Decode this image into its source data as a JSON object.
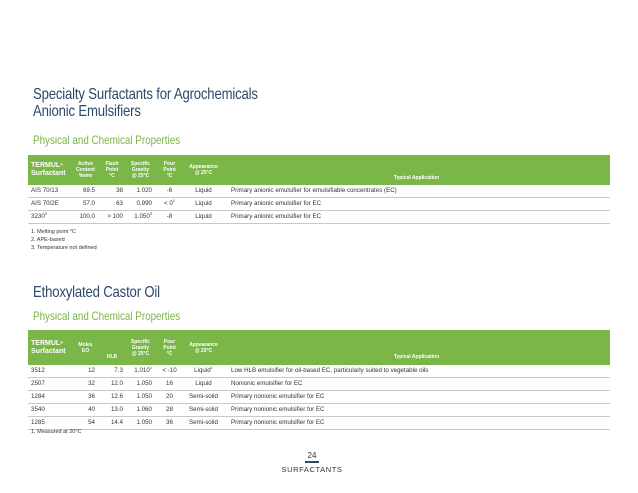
{
  "section1": {
    "title_line1": "Specialty Surfactants for Agrochemicals",
    "title_line2": "Anionic Emulsifiers",
    "subtitle": "Physical and Chemical Properties",
    "headers": {
      "product": "TERMUL",
      "product_mark": "®",
      "product_line2": "Surfactant",
      "active_1": "Active",
      "active_2": "Content",
      "active_3": "%w/w",
      "flash_1": "Flash",
      "flash_2": "Point",
      "flash_3": "°C",
      "sg_1": "Specific",
      "sg_2": "Gravity",
      "sg_3": "@ 25°C",
      "pour_1": "Pour",
      "pour_2": "Point",
      "pour_3": "°C",
      "app_1": "Appearance",
      "app_2": "@ 25°C",
      "typical": "Typical Application"
    },
    "rows": [
      {
        "product": "AIS 70/13",
        "product_sup": "",
        "active": "69.5",
        "flash": "38",
        "sg": "1.020",
        "sg_sup": "",
        "pour": "-6",
        "pour_sup": "",
        "appearance": "Liquid",
        "application": "Primary anionic emulsifier for emulsifiable concentrates (EC)"
      },
      {
        "product": "AIS 70/2E",
        "product_sup": "",
        "active": "57.0",
        "flash": "63",
        "sg": "0.990",
        "sg_sup": "",
        "pour": "< 0",
        "pour_sup": "1",
        "appearance": "Liquid",
        "application": "Primary anionic emulsifier for EC"
      },
      {
        "product": "3230",
        "product_sup": "2",
        "active": "100.0",
        "flash": "> 100",
        "sg": "1.050",
        "sg_sup": "3",
        "pour": "-8",
        "pour_sup": "",
        "appearance": "Liquid",
        "application": "Primary anionic emulsifier for EC"
      }
    ],
    "notes": [
      "1. Melting point °C",
      "2. APE-based",
      "3. Temperature not defined"
    ]
  },
  "section2": {
    "title": "Ethoxylated Castor Oil",
    "subtitle": "Physical and Chemical Properties",
    "headers": {
      "product": "TERMUL",
      "product_mark": "®",
      "product_line2": "Surfactant",
      "moles_1": "Moles",
      "moles_2": "EO",
      "hlb": "HLB",
      "sg_1": "Specific",
      "sg_2": "Gravity",
      "sg_3": "@ 25°C",
      "pour_1": "Pour",
      "pour_2": "Point",
      "pour_3": "°C",
      "app_1": "Appearance",
      "app_2": "@ 25°C",
      "typical": "Typical Application"
    },
    "rows": [
      {
        "product": "3512",
        "moles": "12",
        "hlb": "7.3",
        "sg": "1.010",
        "sg_sup": "1",
        "pour": "< -10",
        "appearance": "Liquid",
        "app_sup": "1",
        "application": "Low HLB emulsifier for oil-based EC, particularly suited to vegetable oils"
      },
      {
        "product": "2507",
        "moles": "32",
        "hlb": "12.0",
        "sg": "1.050",
        "sg_sup": "",
        "pour": "16",
        "appearance": "Liquid",
        "app_sup": "",
        "application": "Nonionic emulsifier for EC"
      },
      {
        "product": "1284",
        "moles": "36",
        "hlb": "12.6",
        "sg": "1.050",
        "sg_sup": "",
        "pour": "20",
        "appearance": "Semi-solid",
        "app_sup": "",
        "application": "Primary nonionic emulsifier for EC"
      },
      {
        "product": "3540",
        "moles": "40",
        "hlb": "13.0",
        "sg": "1.060",
        "sg_sup": "",
        "pour": "28",
        "appearance": "Semi-solid",
        "app_sup": "",
        "application": "Primary nonionic emulsifier for EC"
      },
      {
        "product": "1285",
        "moles": "54",
        "hlb": "14.4",
        "sg": "1.050",
        "sg_sup": "",
        "pour": "36",
        "appearance": "Semi-solid",
        "app_sup": "",
        "application": "Primary nonionic emulsifier for EC"
      }
    ],
    "notes": [
      "1. Measured at 20°C"
    ]
  },
  "footer": {
    "page_number": "24",
    "label": "SURFACTANTS"
  },
  "colors": {
    "title": "#2e4868",
    "accent_green": "#7ab648"
  }
}
